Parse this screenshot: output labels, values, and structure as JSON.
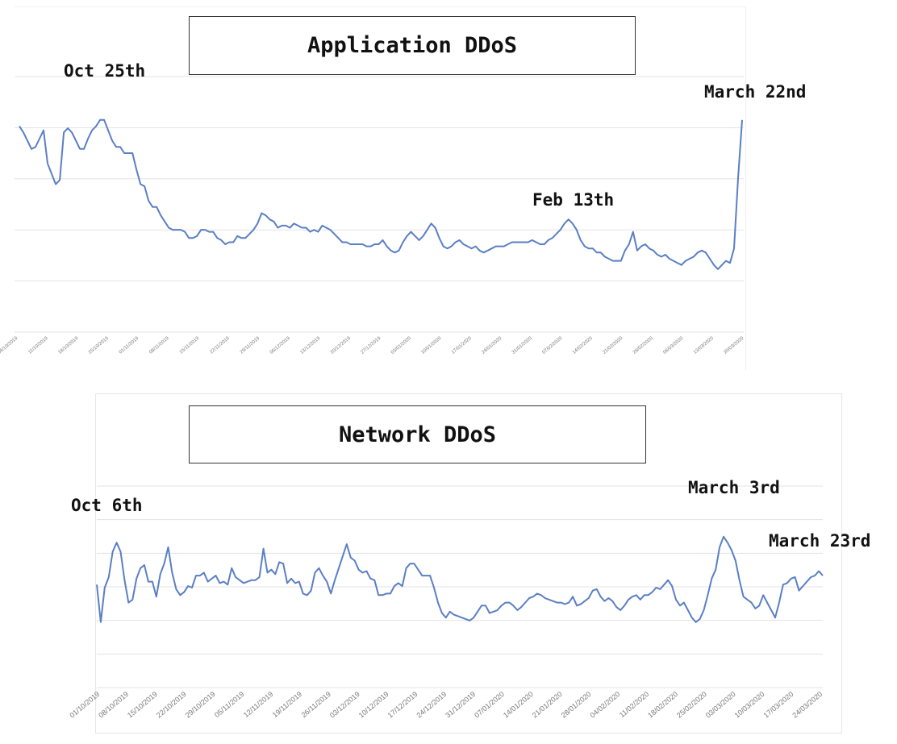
{
  "chart_data": [
    {
      "type": "line",
      "title": "Application DDoS",
      "color": "#5a7fc4",
      "gridlines": true,
      "x_tick_labels": [
        "04/10/2019",
        "11/10/2019",
        "18/10/2019",
        "25/10/2019",
        "01/11/2019",
        "08/11/2019",
        "15/11/2019",
        "22/11/2019",
        "29/11/2019",
        "06/12/2019",
        "13/12/2019",
        "20/12/2019",
        "27/12/2019",
        "03/01/2020",
        "10/01/2020",
        "17/01/2020",
        "24/01/2020",
        "31/01/2020",
        "07/02/2020",
        "14/02/2020",
        "21/02/2020",
        "28/02/2020",
        "06/03/2020",
        "13/03/2020",
        "20/03/2020"
      ],
      "y_gridlines": 6,
      "ylim": [
        0,
        100
      ],
      "values": [
        85,
        82,
        78,
        74,
        75,
        79,
        83,
        67,
        62,
        57,
        59,
        82,
        84,
        82,
        78,
        74,
        74,
        79,
        83,
        85,
        88,
        88,
        83,
        78,
        75,
        75,
        72,
        72,
        72,
        64,
        57,
        56,
        49,
        46,
        46,
        42,
        39,
        36,
        35,
        35,
        35,
        34,
        31,
        31,
        32,
        35,
        35,
        34,
        34,
        31,
        30,
        28,
        29,
        29,
        32,
        31,
        31,
        33,
        35,
        38,
        43,
        42,
        40,
        39,
        36,
        37,
        37,
        36,
        38,
        37,
        36,
        36,
        34,
        35,
        34,
        37,
        36,
        35,
        33,
        31,
        29,
        29,
        28,
        28,
        28,
        28,
        27,
        27,
        28,
        28,
        30,
        27,
        25,
        24,
        25,
        29,
        32,
        34,
        32,
        30,
        32,
        35,
        38,
        36,
        31,
        27,
        26,
        27,
        29,
        30,
        28,
        27,
        26,
        27,
        25,
        24,
        25,
        26,
        27,
        27,
        27,
        28,
        29,
        29,
        29,
        29,
        29,
        30,
        29,
        28,
        28,
        30,
        31,
        33,
        35,
        38,
        40,
        38,
        35,
        30,
        27,
        26,
        26,
        24,
        24,
        22,
        21,
        20,
        20,
        20,
        25,
        28,
        34,
        25,
        27,
        28,
        26,
        25,
        23,
        22,
        23,
        21,
        20,
        19,
        18,
        20,
        21,
        22,
        24,
        25,
        24,
        21,
        18,
        16,
        18,
        20,
        19,
        26,
        60,
        88
      ],
      "annotations": [
        "Oct 25th",
        "Feb 13th",
        "March 22nd"
      ]
    },
    {
      "type": "line",
      "title": "Network DDoS",
      "color": "#5a7fc4",
      "gridlines": true,
      "x_tick_labels": [
        "01/10/2019",
        "08/10/2019",
        "15/10/2019",
        "22/10/2019",
        "29/10/2019",
        "05/11/2019",
        "12/11/2019",
        "19/11/2019",
        "26/11/2019",
        "03/12/2019",
        "10/12/2019",
        "17/12/2019",
        "24/12/2019",
        "31/12/2019",
        "07/01/2020",
        "14/01/2020",
        "21/01/2020",
        "28/01/2020",
        "04/02/2020",
        "11/02/2020",
        "18/02/2020",
        "25/02/2020",
        "03/03/2020",
        "10/03/2020",
        "17/03/2020",
        "24/03/2020"
      ],
      "y_gridlines": 7,
      "ylim": [
        0,
        100
      ],
      "values": [
        52,
        27,
        50,
        57,
        74,
        80,
        74,
        55,
        40,
        42,
        56,
        63,
        65,
        54,
        54,
        44,
        59,
        66,
        77,
        60,
        49,
        45,
        47,
        51,
        50,
        58,
        58,
        60,
        54,
        56,
        58,
        53,
        54,
        52,
        63,
        57,
        55,
        53,
        54,
        55,
        55,
        57,
        76,
        60,
        62,
        59,
        67,
        66,
        53,
        56,
        53,
        54,
        46,
        45,
        48,
        60,
        63,
        58,
        54,
        46,
        55,
        63,
        71,
        79,
        70,
        68,
        62,
        60,
        61,
        56,
        55,
        45,
        45,
        46,
        46,
        51,
        53,
        51,
        63,
        66,
        66,
        62,
        58,
        58,
        58,
        50,
        40,
        33,
        30,
        34,
        32,
        31,
        30,
        29,
        28,
        30,
        34,
        38,
        38,
        33,
        34,
        35,
        38,
        40,
        40,
        38,
        35,
        37,
        40,
        43,
        44,
        46,
        45,
        43,
        42,
        41,
        40,
        40,
        39,
        40,
        44,
        38,
        39,
        41,
        43,
        48,
        49,
        44,
        41,
        43,
        41,
        37,
        35,
        38,
        42,
        44,
        45,
        42,
        45,
        45,
        47,
        50,
        49,
        52,
        55,
        51,
        42,
        38,
        40,
        35,
        30,
        27,
        29,
        35,
        45,
        56,
        62,
        77,
        84,
        80,
        75,
        68,
        55,
        44,
        42,
        40,
        36,
        38,
        45,
        40,
        35,
        30,
        40,
        52,
        53,
        56,
        57,
        48,
        51,
        54,
        57,
        58,
        61,
        58
      ],
      "annotations": [
        "Oct 6th",
        "March 3rd",
        "March 23rd"
      ]
    }
  ]
}
